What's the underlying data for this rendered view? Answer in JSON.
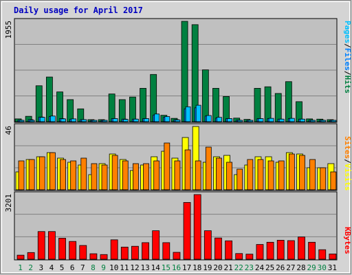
{
  "title": "Daily usage for April 2017",
  "colors": {
    "title": "#0000c0",
    "hits": "#008040",
    "files": "#0080ff",
    "pages": "#00c0ff",
    "visits": "#ffff00",
    "sites": "#ff8000",
    "kbytes": "#ff0000",
    "weekend_day": "#008040",
    "weekday_day": "#000000",
    "plot_bg": "#c0c0c0",
    "frame_bg": "#d4d4d4"
  },
  "chart_data": [
    {
      "type": "bar",
      "panel": "hits-files-pages",
      "y_max_label": "1955",
      "ylim": [
        0,
        1955
      ],
      "legend": [
        "Pages",
        "/",
        "Files",
        "/",
        "Hits"
      ],
      "categories": [
        "1",
        "2",
        "3",
        "4",
        "5",
        "6",
        "7",
        "8",
        "9",
        "10",
        "11",
        "12",
        "13",
        "14",
        "15",
        "16",
        "17",
        "18",
        "19",
        "20",
        "21",
        "22",
        "23",
        "24",
        "25",
        "26",
        "27",
        "28",
        "29",
        "30",
        "31"
      ],
      "series": [
        {
          "name": "Hits",
          "values": [
            55,
            105,
            700,
            870,
            580,
            430,
            250,
            40,
            40,
            540,
            430,
            480,
            650,
            920,
            125,
            65,
            1955,
            1890,
            1010,
            650,
            490,
            70,
            45,
            650,
            680,
            550,
            780,
            390,
            55,
            50,
            40
          ]
        },
        {
          "name": "Files",
          "values": [
            30,
            40,
            90,
            100,
            60,
            50,
            40,
            25,
            25,
            60,
            50,
            50,
            60,
            130,
            90,
            40,
            250,
            270,
            110,
            70,
            60,
            30,
            25,
            60,
            60,
            50,
            60,
            50,
            30,
            30,
            25
          ]
        },
        {
          "name": "Pages",
          "values": [
            20,
            25,
            85,
            110,
            55,
            55,
            40,
            20,
            20,
            60,
            45,
            50,
            60,
            150,
            100,
            35,
            290,
            320,
            120,
            85,
            60,
            25,
            20,
            60,
            65,
            50,
            65,
            50,
            25,
            25,
            20
          ]
        }
      ]
    },
    {
      "type": "bar",
      "panel": "visits-sites",
      "y_max_label": "46",
      "ylim": [
        0,
        46
      ],
      "legend": [
        "Sites",
        "/",
        "Visits"
      ],
      "categories": [
        "1",
        "2",
        "3",
        "4",
        "5",
        "6",
        "7",
        "8",
        "9",
        "10",
        "11",
        "12",
        "13",
        "14",
        "15",
        "16",
        "17",
        "18",
        "19",
        "20",
        "21",
        "22",
        "23",
        "24",
        "25",
        "26",
        "27",
        "28",
        "29",
        "30",
        "31"
      ],
      "series": [
        {
          "name": "Visits",
          "values": [
            13,
            22,
            24,
            27,
            23,
            20,
            18,
            11,
            19,
            26,
            22,
            14,
            18,
            24,
            28,
            23,
            38,
            46,
            20,
            24,
            25,
            11,
            18,
            24,
            24,
            20,
            27,
            26,
            16,
            16,
            19
          ]
        },
        {
          "name": "Sites",
          "values": [
            21,
            22,
            24,
            27,
            22,
            21,
            23,
            19,
            18,
            25,
            21,
            19,
            19,
            21,
            34,
            21,
            29,
            21,
            31,
            23,
            20,
            15,
            22,
            22,
            21,
            21,
            26,
            25,
            22,
            16,
            13
          ]
        }
      ]
    },
    {
      "type": "bar",
      "panel": "kbytes",
      "y_max_label": "3201",
      "ylim": [
        0,
        3201
      ],
      "legend": [
        "KBytes"
      ],
      "categories": [
        "1",
        "2",
        "3",
        "4",
        "5",
        "6",
        "7",
        "8",
        "9",
        "10",
        "11",
        "12",
        "13",
        "14",
        "15",
        "16",
        "17",
        "18",
        "19",
        "20",
        "21",
        "22",
        "23",
        "24",
        "25",
        "26",
        "27",
        "28",
        "29",
        "30",
        "31"
      ],
      "series": [
        {
          "name": "KBytes",
          "values": [
            200,
            330,
            1370,
            1370,
            1040,
            880,
            680,
            270,
            230,
            960,
            600,
            640,
            820,
            1410,
            820,
            340,
            2810,
            3201,
            1410,
            1050,
            910,
            280,
            250,
            730,
            840,
            940,
            920,
            1100,
            840,
            470,
            260
          ]
        }
      ]
    }
  ]
}
